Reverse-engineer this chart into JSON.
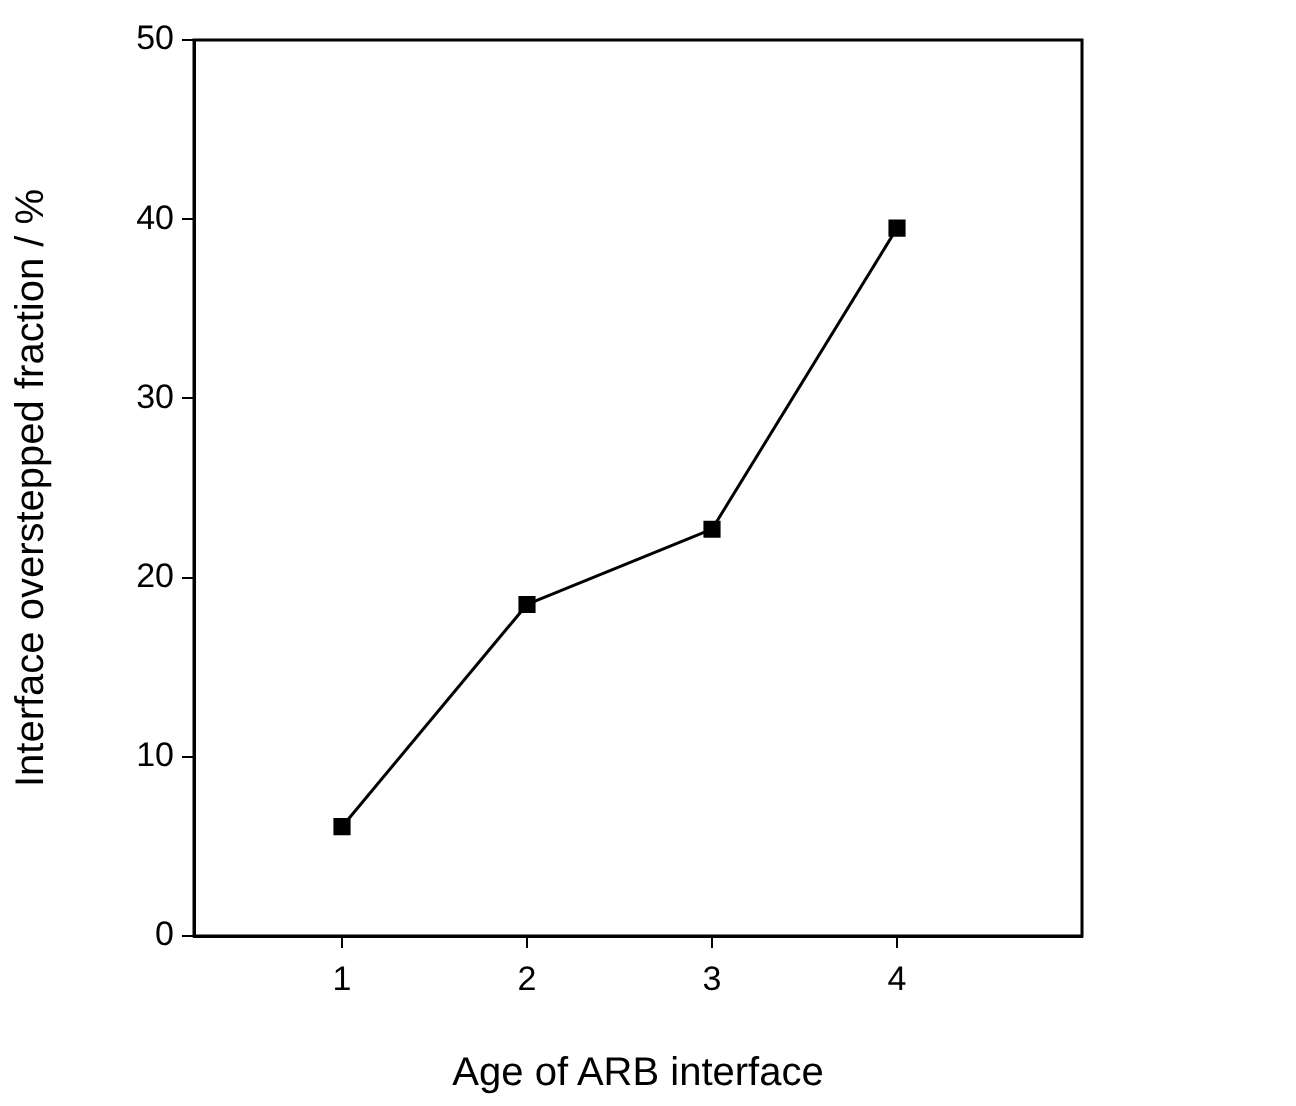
{
  "chart_data": {
    "type": "line",
    "xlabel": "Age of ARB interface",
    "ylabel": "Interface overstepped fraction / %",
    "x": [
      1,
      2,
      3,
      4
    ],
    "series": [
      {
        "color": "#000000",
        "values": [
          6.1,
          18.5,
          22.7,
          39.5
        ]
      }
    ],
    "xlim": [
      0.2,
      5
    ],
    "xticks": [
      1,
      2,
      3,
      4
    ],
    "ylim": [
      0,
      50
    ],
    "yticks": [
      0,
      10,
      20,
      30,
      40,
      50
    ],
    "marker": "square",
    "line_style": "solid",
    "grid": false,
    "legend": false
  }
}
